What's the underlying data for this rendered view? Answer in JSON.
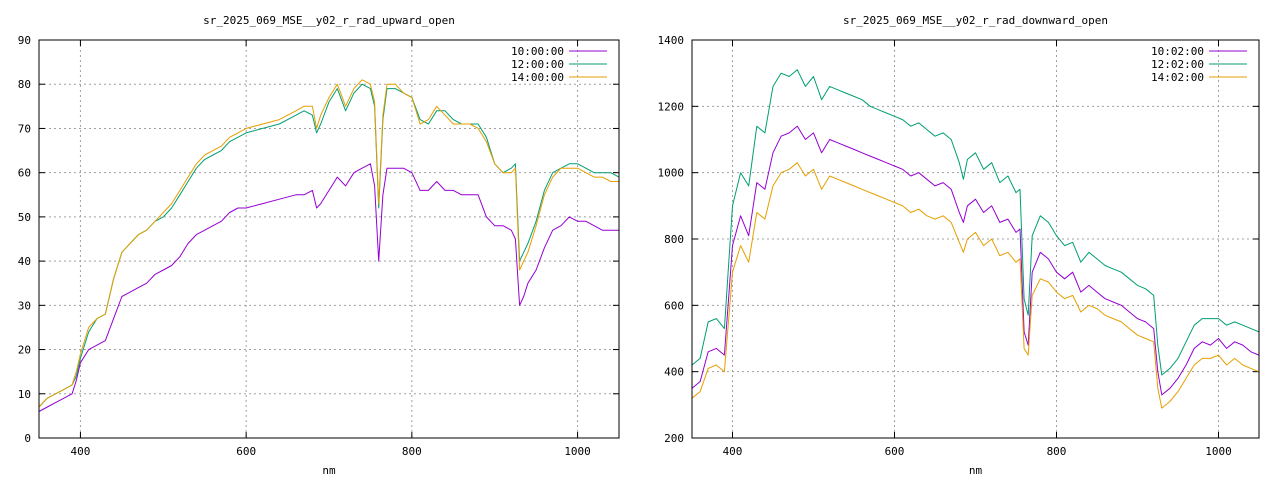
{
  "chart_data": [
    {
      "type": "line",
      "title": "sr_2025_069_MSE__y02_r_rad_upward_open",
      "xlabel": "nm",
      "ylabel": "",
      "xlim": [
        350,
        1050
      ],
      "ylim": [
        0,
        90
      ],
      "xticks": [
        400,
        600,
        800,
        1000
      ],
      "yticks": [
        0,
        10,
        20,
        30,
        40,
        50,
        60,
        70,
        80,
        90
      ],
      "grid": true,
      "legend_position": "top-right",
      "series": [
        {
          "name": "10:00:00",
          "color": "#9400d3",
          "x": [
            350,
            360,
            370,
            380,
            390,
            395,
            400,
            410,
            420,
            430,
            440,
            450,
            460,
            470,
            480,
            490,
            500,
            510,
            520,
            530,
            540,
            550,
            560,
            570,
            580,
            590,
            600,
            620,
            640,
            660,
            670,
            680,
            685,
            690,
            700,
            710,
            720,
            730,
            740,
            750,
            755,
            760,
            765,
            770,
            780,
            790,
            800,
            810,
            820,
            830,
            840,
            850,
            860,
            870,
            880,
            890,
            900,
            910,
            920,
            925,
            930,
            935,
            940,
            950,
            960,
            970,
            980,
            990,
            1000,
            1010,
            1020,
            1030,
            1040,
            1050
          ],
          "y": [
            6,
            7,
            8,
            9,
            10,
            13,
            17,
            20,
            21,
            22,
            27,
            32,
            33,
            34,
            35,
            37,
            38,
            39,
            41,
            44,
            46,
            47,
            48,
            49,
            51,
            52,
            52,
            53,
            54,
            55,
            55,
            56,
            52,
            53,
            56,
            59,
            57,
            60,
            61,
            62,
            57,
            40,
            55,
            61,
            61,
            61,
            60,
            56,
            56,
            58,
            56,
            56,
            55,
            55,
            55,
            50,
            48,
            48,
            47,
            45,
            30,
            32,
            35,
            38,
            43,
            47,
            48,
            50,
            49,
            49,
            48,
            47,
            47,
            47
          ]
        },
        {
          "name": "12:00:00",
          "color": "#009e73",
          "x": [
            350,
            360,
            370,
            380,
            390,
            395,
            400,
            410,
            420,
            430,
            440,
            450,
            460,
            470,
            480,
            490,
            500,
            510,
            520,
            530,
            540,
            550,
            560,
            570,
            580,
            590,
            600,
            620,
            640,
            660,
            670,
            680,
            685,
            690,
            700,
            710,
            720,
            730,
            740,
            750,
            755,
            760,
            765,
            770,
            780,
            790,
            800,
            810,
            820,
            830,
            840,
            850,
            860,
            870,
            880,
            890,
            900,
            910,
            920,
            925,
            930,
            935,
            940,
            950,
            960,
            970,
            980,
            990,
            1000,
            1010,
            1020,
            1030,
            1040,
            1050
          ],
          "y": [
            7,
            9,
            10,
            11,
            12,
            14,
            18,
            24,
            27,
            28,
            36,
            42,
            44,
            46,
            47,
            49,
            50,
            52,
            55,
            58,
            61,
            63,
            64,
            65,
            67,
            68,
            69,
            70,
            71,
            73,
            74,
            73,
            69,
            71,
            76,
            79,
            74,
            78,
            80,
            79,
            75,
            52,
            72,
            79,
            79,
            78,
            77,
            72,
            71,
            74,
            74,
            72,
            71,
            71,
            71,
            68,
            62,
            60,
            61,
            62,
            40,
            42,
            44,
            49,
            56,
            60,
            61,
            62,
            62,
            61,
            60,
            60,
            60,
            59
          ]
        },
        {
          "name": "14:00:00",
          "color": "#e69f00",
          "x": [
            350,
            360,
            370,
            380,
            390,
            395,
            400,
            410,
            420,
            430,
            440,
            450,
            460,
            470,
            480,
            490,
            500,
            510,
            520,
            530,
            540,
            550,
            560,
            570,
            580,
            590,
            600,
            620,
            640,
            660,
            670,
            680,
            685,
            690,
            700,
            710,
            720,
            730,
            740,
            750,
            755,
            760,
            765,
            770,
            780,
            790,
            800,
            810,
            820,
            830,
            840,
            850,
            860,
            870,
            880,
            890,
            900,
            910,
            920,
            925,
            930,
            935,
            940,
            950,
            960,
            970,
            980,
            990,
            1000,
            1010,
            1020,
            1030,
            1040,
            1050
          ],
          "y": [
            7,
            9,
            10,
            11,
            12,
            15,
            19,
            25,
            27,
            28,
            36,
            42,
            44,
            46,
            47,
            49,
            51,
            53,
            56,
            59,
            62,
            64,
            65,
            66,
            68,
            69,
            70,
            71,
            72,
            74,
            75,
            75,
            70,
            73,
            77,
            80,
            75,
            79,
            81,
            80,
            76,
            53,
            73,
            80,
            80,
            78,
            77,
            71,
            72,
            75,
            73,
            71,
            71,
            71,
            70,
            67,
            62,
            60,
            60,
            61,
            38,
            40,
            42,
            48,
            55,
            59,
            61,
            61,
            61,
            60,
            59,
            59,
            58,
            58
          ]
        }
      ]
    },
    {
      "type": "line",
      "title": "sr_2025_069_MSE__y02_r_rad_downward_open",
      "xlabel": "nm",
      "ylabel": "",
      "xlim": [
        350,
        1050
      ],
      "ylim": [
        200,
        1400
      ],
      "xticks": [
        400,
        600,
        800,
        1000
      ],
      "yticks": [
        200,
        400,
        600,
        800,
        1000,
        1200,
        1400
      ],
      "grid": true,
      "legend_position": "top-right",
      "series": [
        {
          "name": "10:02:00",
          "color": "#9400d3",
          "x": [
            350,
            360,
            370,
            380,
            390,
            400,
            410,
            420,
            430,
            440,
            450,
            460,
            470,
            480,
            490,
            500,
            510,
            520,
            530,
            540,
            550,
            560,
            570,
            580,
            590,
            600,
            610,
            620,
            630,
            640,
            650,
            660,
            670,
            680,
            685,
            690,
            700,
            710,
            720,
            730,
            740,
            750,
            755,
            760,
            765,
            770,
            780,
            790,
            800,
            810,
            820,
            830,
            840,
            850,
            860,
            870,
            880,
            890,
            900,
            910,
            920,
            925,
            930,
            940,
            950,
            960,
            970,
            980,
            990,
            1000,
            1010,
            1020,
            1030,
            1040,
            1050
          ],
          "y": [
            350,
            370,
            460,
            470,
            450,
            780,
            870,
            810,
            970,
            950,
            1060,
            1110,
            1120,
            1140,
            1100,
            1120,
            1060,
            1100,
            1090,
            1080,
            1070,
            1060,
            1050,
            1040,
            1030,
            1020,
            1010,
            990,
            1000,
            980,
            960,
            970,
            950,
            880,
            850,
            900,
            920,
            880,
            900,
            850,
            860,
            820,
            830,
            520,
            480,
            700,
            760,
            740,
            700,
            680,
            700,
            640,
            660,
            640,
            620,
            610,
            600,
            580,
            560,
            550,
            530,
            400,
            330,
            350,
            380,
            420,
            470,
            490,
            480,
            500,
            470,
            490,
            480,
            460,
            450
          ]
        },
        {
          "name": "12:02:00",
          "color": "#009e73",
          "x": [
            350,
            360,
            370,
            380,
            390,
            400,
            410,
            420,
            430,
            440,
            450,
            460,
            470,
            480,
            490,
            500,
            510,
            520,
            530,
            540,
            550,
            560,
            570,
            580,
            590,
            600,
            610,
            620,
            630,
            640,
            650,
            660,
            670,
            680,
            685,
            690,
            700,
            710,
            720,
            730,
            740,
            750,
            755,
            760,
            765,
            770,
            780,
            790,
            800,
            810,
            820,
            830,
            840,
            850,
            860,
            870,
            880,
            890,
            900,
            910,
            920,
            925,
            930,
            940,
            950,
            960,
            970,
            980,
            990,
            1000,
            1010,
            1020,
            1030,
            1040,
            1050
          ],
          "y": [
            420,
            440,
            550,
            560,
            530,
            900,
            1000,
            960,
            1140,
            1120,
            1260,
            1300,
            1290,
            1310,
            1260,
            1290,
            1220,
            1260,
            1250,
            1240,
            1230,
            1220,
            1200,
            1190,
            1180,
            1170,
            1160,
            1140,
            1150,
            1130,
            1110,
            1120,
            1100,
            1030,
            980,
            1040,
            1060,
            1010,
            1030,
            970,
            990,
            940,
            950,
            620,
            570,
            810,
            870,
            850,
            810,
            780,
            790,
            730,
            760,
            740,
            720,
            710,
            700,
            680,
            660,
            650,
            630,
            480,
            390,
            410,
            440,
            490,
            540,
            560,
            560,
            560,
            540,
            550,
            540,
            530,
            520
          ]
        },
        {
          "name": "14:02:00",
          "color": "#e69f00",
          "x": [
            350,
            360,
            370,
            380,
            390,
            400,
            410,
            420,
            430,
            440,
            450,
            460,
            470,
            480,
            490,
            500,
            510,
            520,
            530,
            540,
            550,
            560,
            570,
            580,
            590,
            600,
            610,
            620,
            630,
            640,
            650,
            660,
            670,
            680,
            685,
            690,
            700,
            710,
            720,
            730,
            740,
            750,
            755,
            760,
            765,
            770,
            780,
            790,
            800,
            810,
            820,
            830,
            840,
            850,
            860,
            870,
            880,
            890,
            900,
            910,
            920,
            925,
            930,
            940,
            950,
            960,
            970,
            980,
            990,
            1000,
            1010,
            1020,
            1030,
            1040,
            1050
          ],
          "y": [
            320,
            340,
            410,
            420,
            400,
            700,
            780,
            730,
            880,
            860,
            960,
            1000,
            1010,
            1030,
            990,
            1010,
            950,
            990,
            980,
            970,
            960,
            950,
            940,
            930,
            920,
            910,
            900,
            880,
            890,
            870,
            860,
            870,
            850,
            790,
            760,
            800,
            820,
            780,
            800,
            750,
            760,
            730,
            740,
            470,
            450,
            630,
            680,
            670,
            640,
            620,
            630,
            580,
            600,
            590,
            570,
            560,
            550,
            530,
            510,
            500,
            490,
            350,
            290,
            310,
            340,
            380,
            420,
            440,
            440,
            450,
            420,
            440,
            420,
            410,
            400
          ]
        }
      ]
    }
  ]
}
